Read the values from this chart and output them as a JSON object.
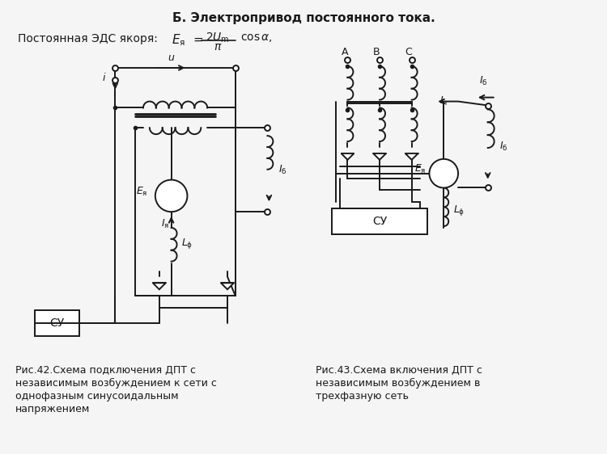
{
  "title": "Б. Электропривод постоянного тока.",
  "subtitle_left": "Постоянная ЭДС якоря:",
  "caption1_line1": "Рис.42.Схема подключения ДПТ с",
  "caption1_line2": "независимым возбуждением к сети с",
  "caption1_line3": "однофазным синусоидальным",
  "caption1_line4": "напряжением",
  "caption2_line1": "Рис.43.Схема включения ДПТ с",
  "caption2_line2": "независимым возбуждением в",
  "caption2_line3": "трехфазную сеть",
  "bg_color": "#f5f5f5",
  "line_color": "#1a1a1a"
}
